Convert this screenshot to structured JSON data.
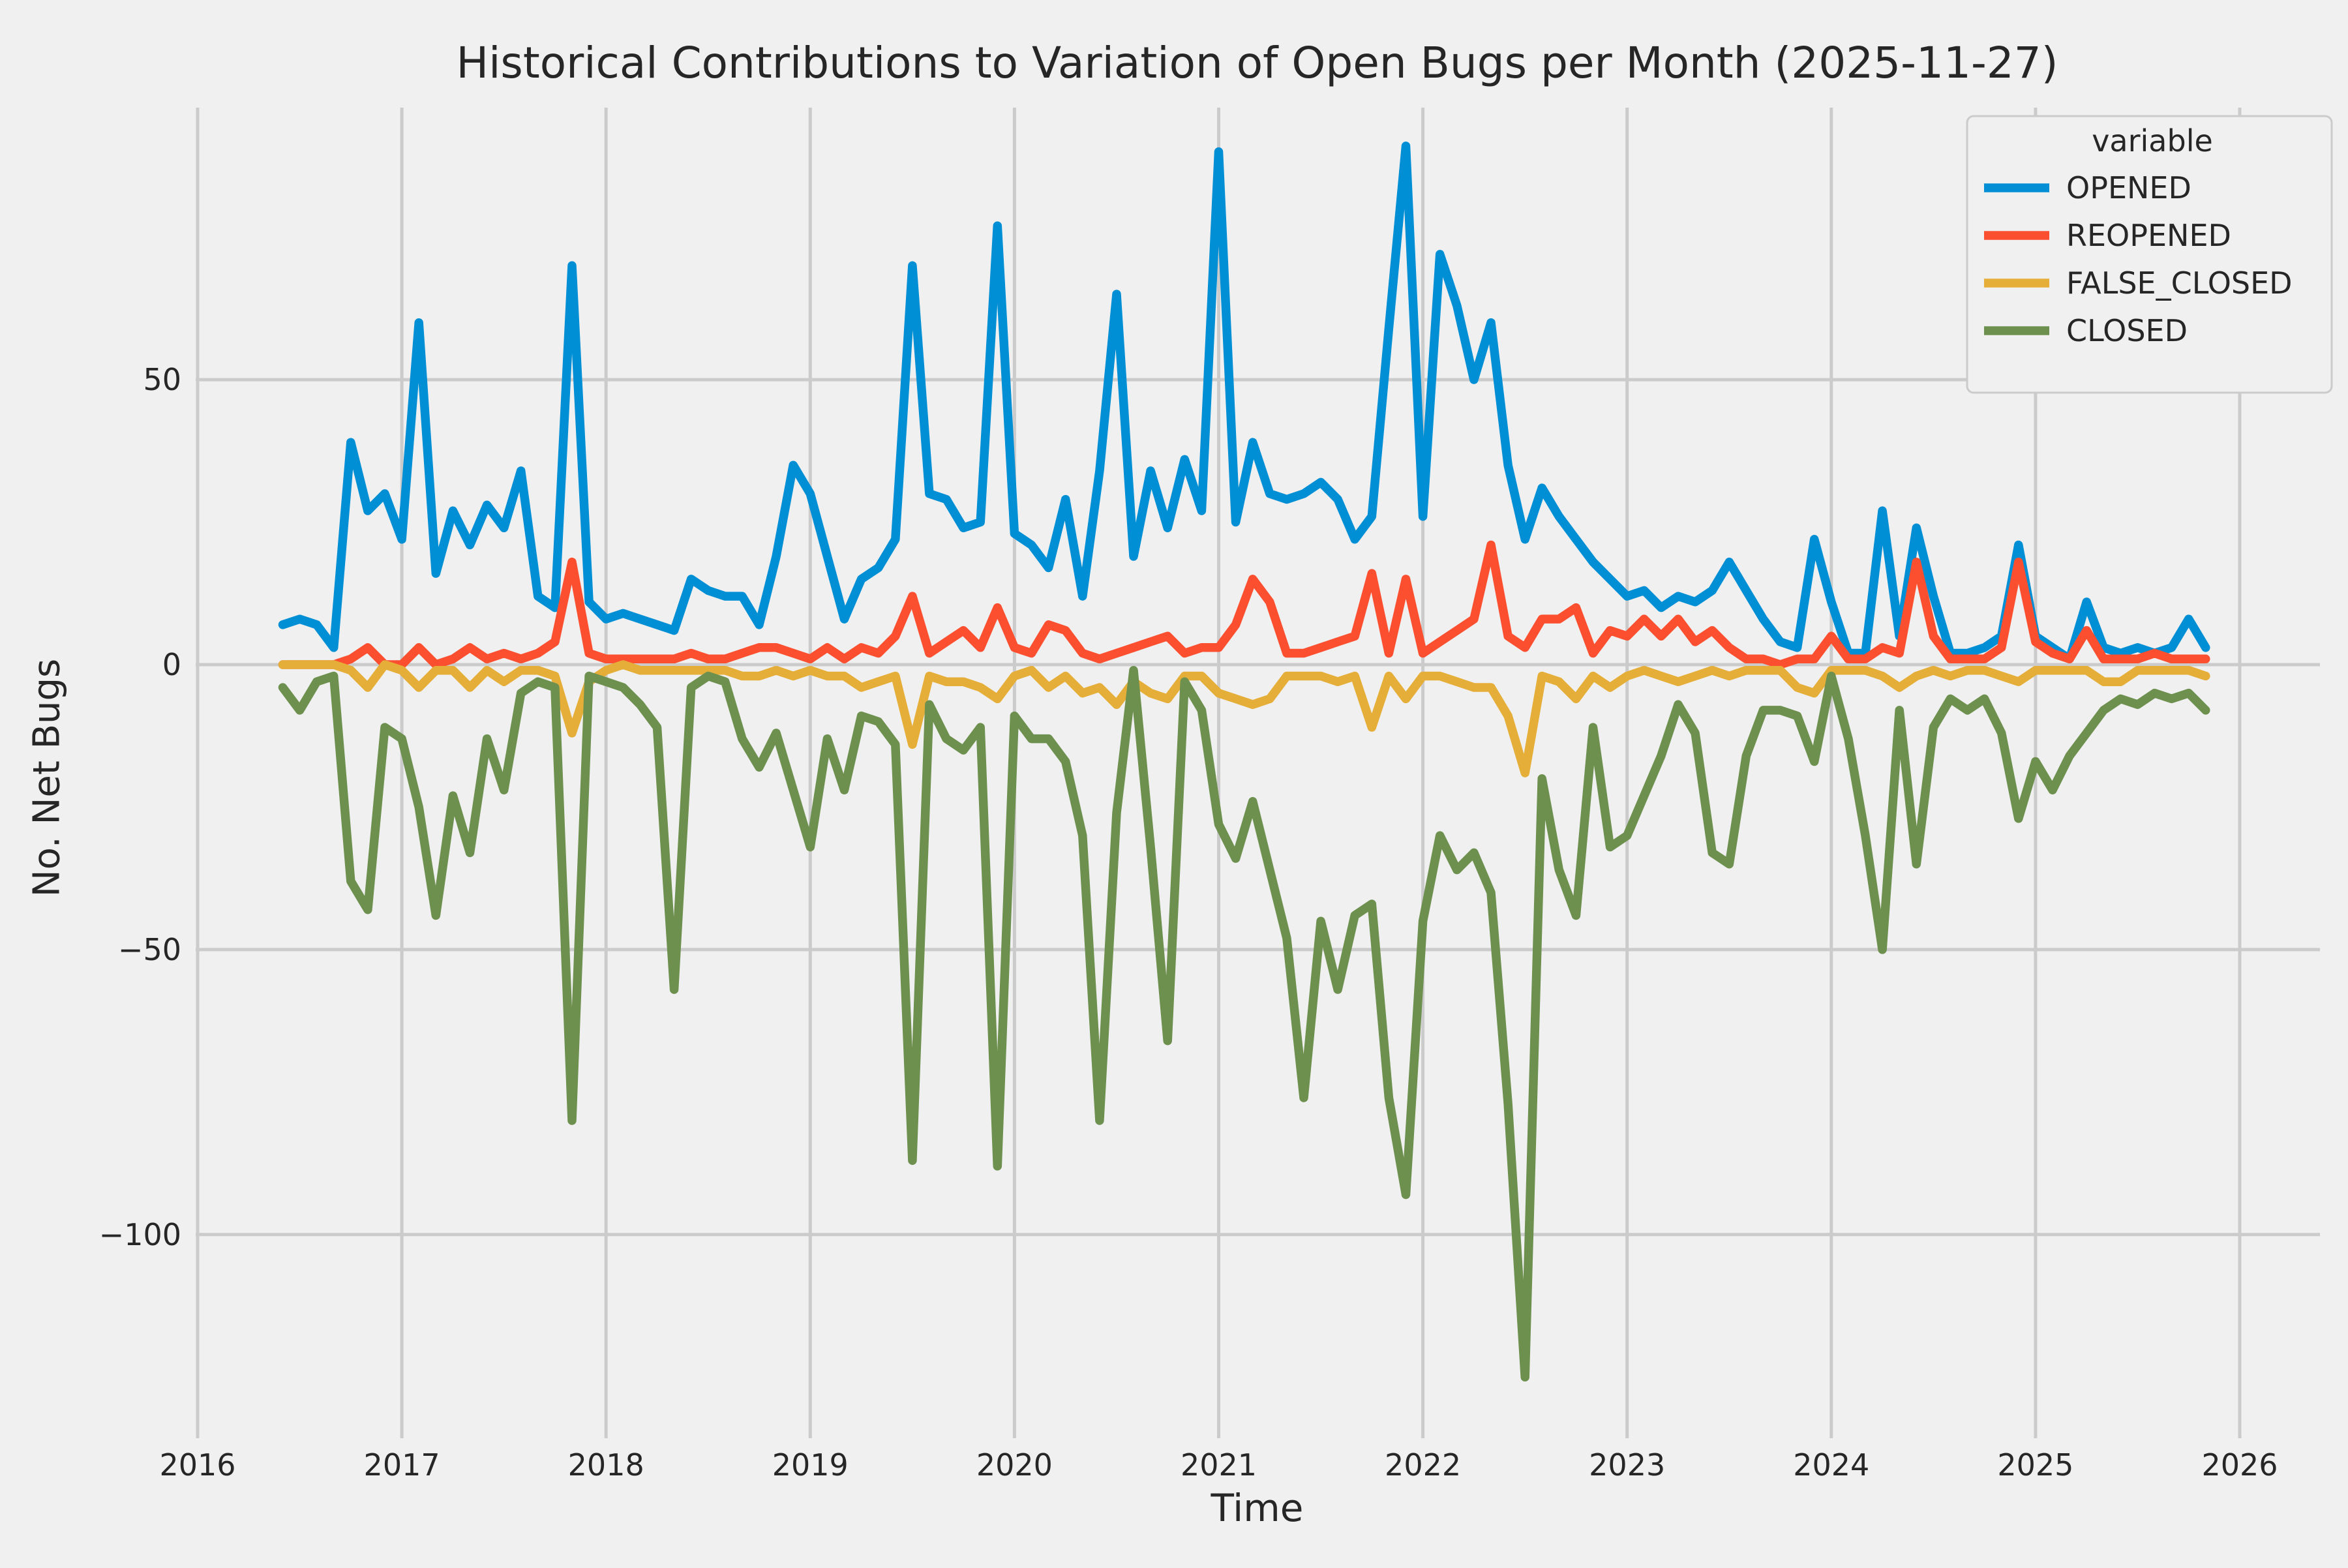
{
  "chart_data": {
    "type": "line",
    "title": "Historical Contributions to Variation of Open Bugs per Month (2025-11-27)",
    "xlabel": "Time",
    "ylabel": "No. Net Bugs",
    "legend_title": "variable",
    "legend_position": "upper right",
    "grid": true,
    "background_color": "#f0f0f0",
    "grid_color": "#cbcbcb",
    "text_color": "#262626",
    "ylim": [
      -136,
      98
    ],
    "xlim": [
      2015.99,
      2026.39
    ],
    "x_ticks": [
      {
        "label": "2016",
        "year": 2016
      },
      {
        "label": "2017",
        "year": 2017
      },
      {
        "label": "2018",
        "year": 2018
      },
      {
        "label": "2019",
        "year": 2019
      },
      {
        "label": "2020",
        "year": 2020
      },
      {
        "label": "2021",
        "year": 2021
      },
      {
        "label": "2022",
        "year": 2022
      },
      {
        "label": "2023",
        "year": 2023
      },
      {
        "label": "2024",
        "year": 2024
      },
      {
        "label": "2025",
        "year": 2025
      },
      {
        "label": "2026",
        "year": 2026
      }
    ],
    "y_ticks": [
      {
        "label": "50",
        "value": 50
      },
      {
        "label": "0",
        "value": 0
      },
      {
        "label": "−50",
        "value": -50
      },
      {
        "label": "−100",
        "value": -100
      }
    ],
    "x": [
      "2016-06",
      "2016-07",
      "2016-08",
      "2016-09",
      "2016-10",
      "2016-11",
      "2016-12",
      "2017-01",
      "2017-02",
      "2017-03",
      "2017-04",
      "2017-05",
      "2017-06",
      "2017-07",
      "2017-08",
      "2017-09",
      "2017-10",
      "2017-11",
      "2017-12",
      "2018-01",
      "2018-02",
      "2018-03",
      "2018-04",
      "2018-05",
      "2018-06",
      "2018-07",
      "2018-08",
      "2018-09",
      "2018-10",
      "2018-11",
      "2018-12",
      "2019-01",
      "2019-02",
      "2019-03",
      "2019-04",
      "2019-05",
      "2019-06",
      "2019-07",
      "2019-08",
      "2019-09",
      "2019-10",
      "2019-11",
      "2019-12",
      "2020-01",
      "2020-02",
      "2020-03",
      "2020-04",
      "2020-05",
      "2020-06",
      "2020-07",
      "2020-08",
      "2020-09",
      "2020-10",
      "2020-11",
      "2020-12",
      "2021-01",
      "2021-02",
      "2021-03",
      "2021-04",
      "2021-05",
      "2021-06",
      "2021-07",
      "2021-08",
      "2021-09",
      "2021-10",
      "2021-11",
      "2021-12",
      "2022-01",
      "2022-02",
      "2022-03",
      "2022-04",
      "2022-05",
      "2022-06",
      "2022-07",
      "2022-08",
      "2022-09",
      "2022-10",
      "2022-11",
      "2022-12",
      "2023-01",
      "2023-02",
      "2023-03",
      "2023-04",
      "2023-05",
      "2023-06",
      "2023-07",
      "2023-08",
      "2023-09",
      "2023-10",
      "2023-11",
      "2023-12",
      "2024-01",
      "2024-02",
      "2024-03",
      "2024-04",
      "2024-05",
      "2024-06",
      "2024-07",
      "2024-08",
      "2024-09",
      "2024-10",
      "2024-11",
      "2024-12",
      "2025-01",
      "2025-02",
      "2025-03",
      "2025-04",
      "2025-05",
      "2025-06",
      "2025-07",
      "2025-08",
      "2025-09",
      "2025-10",
      "2025-11"
    ],
    "series": [
      {
        "name": "OPENED",
        "color": "#008fd5",
        "values": [
          7,
          8,
          7,
          3,
          39,
          27,
          30,
          22,
          60,
          16,
          27,
          21,
          28,
          24,
          34,
          12,
          10,
          70,
          11,
          8,
          9,
          8,
          7,
          6,
          15,
          13,
          12,
          12,
          7,
          19,
          35,
          30,
          19,
          8,
          15,
          17,
          22,
          70,
          30,
          29,
          24,
          25,
          77,
          23,
          21,
          17,
          29,
          12,
          34,
          65,
          19,
          34,
          24,
          36,
          27,
          90,
          25,
          39,
          30,
          29,
          30,
          32,
          29,
          22,
          26,
          59,
          91,
          26,
          72,
          63,
          50,
          60,
          35,
          22,
          31,
          26,
          22,
          18,
          15,
          12,
          13,
          10,
          12,
          11,
          13,
          18,
          13,
          8,
          4,
          3,
          22,
          11,
          2,
          2,
          27,
          5,
          24,
          12,
          2,
          2,
          3,
          5,
          21,
          5,
          3,
          1,
          11,
          3,
          2,
          3,
          2,
          3,
          8,
          3
        ]
      },
      {
        "name": "REOPENED",
        "color": "#fc4f30",
        "values": [
          0,
          0,
          0,
          0,
          1,
          3,
          0,
          0,
          3,
          0,
          1,
          3,
          1,
          2,
          1,
          2,
          4,
          18,
          2,
          1,
          1,
          1,
          1,
          1,
          2,
          1,
          1,
          2,
          3,
          3,
          2,
          1,
          3,
          1,
          3,
          2,
          5,
          12,
          2,
          4,
          6,
          3,
          10,
          3,
          2,
          7,
          6,
          2,
          1,
          2,
          3,
          4,
          5,
          2,
          3,
          3,
          7,
          15,
          11,
          2,
          2,
          3,
          4,
          5,
          16,
          2,
          15,
          2,
          4,
          6,
          8,
          21,
          5,
          3,
          8,
          8,
          10,
          2,
          6,
          5,
          8,
          5,
          8,
          4,
          6,
          3,
          1,
          1,
          0,
          1,
          1,
          5,
          1,
          1,
          3,
          2,
          18,
          5,
          1,
          1,
          1,
          3,
          18,
          4,
          2,
          1,
          6,
          1,
          1,
          1,
          2,
          1,
          1,
          1
        ]
      },
      {
        "name": "FALSE_CLOSED",
        "color": "#e5ae38",
        "values": [
          0,
          0,
          0,
          0,
          -1,
          -4,
          0,
          -1,
          -4,
          -1,
          -1,
          -4,
          -1,
          -3,
          -1,
          -1,
          -2,
          -12,
          -3,
          -1,
          0,
          -1,
          -1,
          -1,
          -1,
          -1,
          -1,
          -2,
          -2,
          -1,
          -2,
          -1,
          -2,
          -2,
          -4,
          -3,
          -2,
          -14,
          -2,
          -3,
          -3,
          -4,
          -6,
          -2,
          -1,
          -4,
          -2,
          -5,
          -4,
          -7,
          -3,
          -5,
          -6,
          -2,
          -2,
          -5,
          -6,
          -7,
          -6,
          -2,
          -2,
          -2,
          -3,
          -2,
          -11,
          -2,
          -6,
          -2,
          -2,
          -3,
          -4,
          -4,
          -9,
          -19,
          -2,
          -3,
          -6,
          -2,
          -4,
          -2,
          -1,
          -2,
          -3,
          -2,
          -1,
          -2,
          -1,
          -1,
          -1,
          -4,
          -5,
          -1,
          -1,
          -1,
          -2,
          -4,
          -2,
          -1,
          -2,
          -1,
          -1,
          -2,
          -3,
          -1,
          -1,
          -1,
          -1,
          -3,
          -3,
          -1,
          -1,
          -1,
          -1,
          -2
        ]
      },
      {
        "name": "CLOSED",
        "color": "#6d904f",
        "values": [
          -4,
          -8,
          -3,
          -2,
          -38,
          -43,
          -11,
          -13,
          -25,
          -44,
          -23,
          -33,
          -13,
          -22,
          -5,
          -3,
          -4,
          -80,
          -2,
          -3,
          -4,
          -7,
          -11,
          -57,
          -4,
          -2,
          -3,
          -13,
          -18,
          -12,
          -22,
          -32,
          -13,
          -22,
          -9,
          -10,
          -14,
          -87,
          -7,
          -13,
          -15,
          -11,
          -88,
          -9,
          -13,
          -13,
          -17,
          -30,
          -80,
          -26,
          -1,
          -32,
          -66,
          -3,
          -8,
          -28,
          -34,
          -24,
          -36,
          -48,
          -76,
          -45,
          -57,
          -44,
          -42,
          -76,
          -93,
          -45,
          -30,
          -36,
          -33,
          -40,
          -77,
          -125,
          -20,
          -36,
          -44,
          -11,
          -32,
          -30,
          -23,
          -16,
          -7,
          -12,
          -33,
          -35,
          -16,
          -8,
          -8,
          -9,
          -17,
          -2,
          -13,
          -30,
          -50,
          -8,
          -35,
          -11,
          -6,
          -8,
          -6,
          -12,
          -27,
          -17,
          -22,
          -16,
          -12,
          -8,
          -6,
          -7,
          -5,
          -6,
          -5,
          -8
        ]
      }
    ]
  }
}
